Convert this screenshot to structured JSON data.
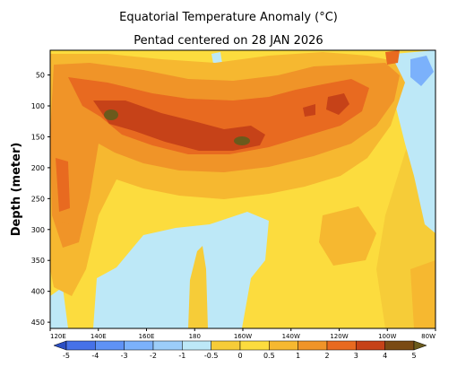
{
  "chart_data": {
    "type": "heatmap",
    "title": "Equatorial Temperature Anomaly (°C)",
    "subtitle": "Pentad centered on 28 JAN 2026",
    "xlabel": "",
    "ylabel": "Depth (meter)",
    "x_ticks": [
      "120E",
      "140E",
      "160E",
      "180",
      "160W",
      "140W",
      "120W",
      "100W",
      "80W"
    ],
    "x_lim_deg_east": [
      120,
      280
    ],
    "y_ticks": [
      50,
      100,
      150,
      200,
      250,
      300,
      350,
      400,
      450
    ],
    "y_lim": [
      460,
      10
    ],
    "colorbar": {
      "labels": [
        "-5",
        "-4",
        "-3",
        "-2",
        "-1",
        "-0.5",
        "0",
        "0.5",
        "1",
        "2",
        "3",
        "4",
        "5"
      ],
      "colors": [
        "#2c4fc4",
        "#4671e8",
        "#5f92f5",
        "#7bb1fb",
        "#9ccdf9",
        "#bde8f7",
        "#f6cc38",
        "#fcdc3e",
        "#f6b830",
        "#f09428",
        "#e86a20",
        "#c64218",
        "#7a4a14",
        "#6a5a1c"
      ]
    },
    "series": [
      {
        "level": "0.5",
        "color": "#f6cc38"
      },
      {
        "level": "1",
        "color": "#f6b830"
      },
      {
        "level": "2",
        "color": "#f09428"
      },
      {
        "level": "3",
        "color": "#e86a20"
      },
      {
        "level": "4",
        "color": "#c64218"
      },
      {
        "level": "5",
        "color": "#6a5a1c"
      },
      {
        "level": "-0.5",
        "color": "#bde8f7"
      },
      {
        "level": "-1",
        "color": "#9ccdf9"
      },
      {
        "level": "-2",
        "color": "#7bb1fb"
      }
    ]
  }
}
